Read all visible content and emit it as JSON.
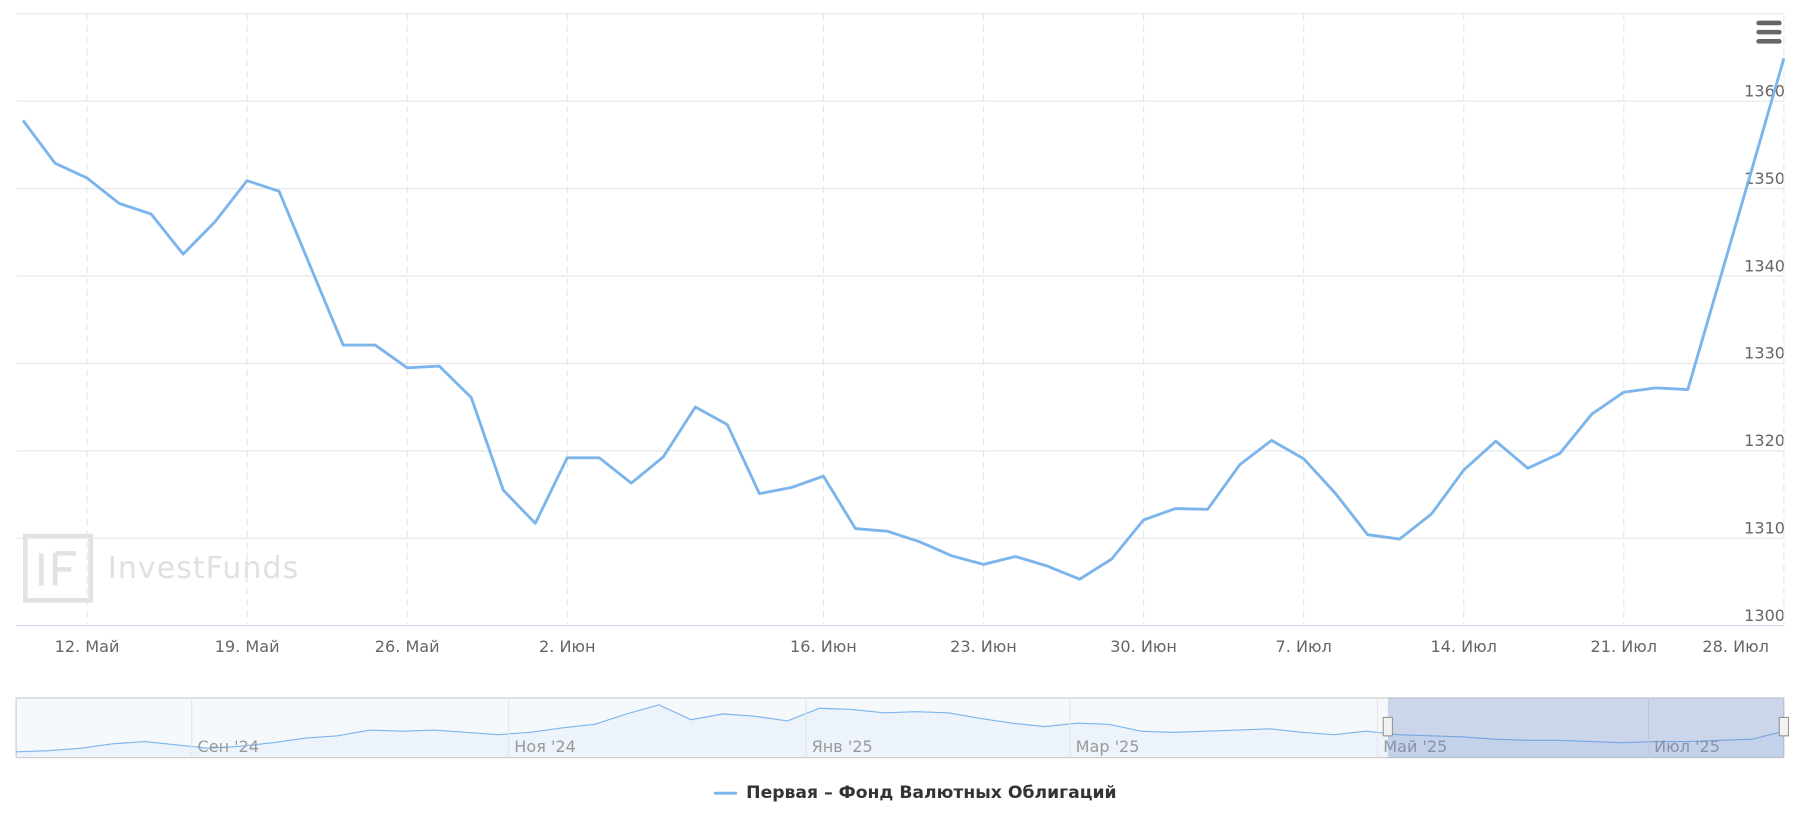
{
  "chart_data": {
    "type": "line",
    "categories": [
      null,
      null,
      "12. Май",
      null,
      null,
      null,
      null,
      "19. Май",
      null,
      null,
      null,
      null,
      "26. Май",
      null,
      null,
      null,
      null,
      "2. Июн",
      null,
      null,
      null,
      null,
      null,
      null,
      null,
      "16. Июн",
      null,
      null,
      null,
      null,
      "23. Июн",
      null,
      null,
      null,
      null,
      "30. Июн",
      null,
      null,
      null,
      null,
      "7. Июл",
      null,
      null,
      null,
      null,
      "14. Июл",
      null,
      null,
      null,
      null,
      "21. Июл",
      null,
      null,
      null,
      null,
      "28. Июл"
    ],
    "series": [
      {
        "name": "Первая – Фонд Валютных Облигаций",
        "color": "#7cb5ec",
        "values": [
          1357.8,
          1352.9,
          1351.2,
          1348.3,
          1347.1,
          1342.5,
          1346.2,
          1350.9,
          1349.7,
          1340.9,
          1332.1,
          1332.1,
          1329.5,
          1329.7,
          1326.1,
          1315.5,
          1311.7,
          1319.2,
          1319.2,
          1316.3,
          1319.3,
          1325.0,
          1323.0,
          1315.1,
          1315.8,
          1317.1,
          1311.1,
          1310.8,
          1309.6,
          1308.0,
          1307.0,
          1307.9,
          1306.8,
          1305.3,
          1307.6,
          1312.1,
          1313.4,
          1313.3,
          1318.4,
          1321.2,
          1319.1,
          1315.1,
          1310.4,
          1309.9,
          1312.8,
          1317.8,
          1321.1,
          1318.0,
          1319.7,
          1324.2,
          1326.7,
          1327.2,
          1327.0,
          1339.6,
          1352.2,
          1364.9
        ]
      }
    ],
    "ylim": [
      1300,
      1370
    ],
    "yticks": [
      1300,
      1310,
      1320,
      1330,
      1340,
      1350,
      1360
    ],
    "grid": true,
    "watermark": "InvestFunds",
    "navigator": {
      "color": "#7cb5ec",
      "ylim": [
        1220,
        1620
      ],
      "values": [
        1259,
        1266,
        1282,
        1312,
        1328,
        1305,
        1282,
        1297,
        1320,
        1351,
        1366,
        1405,
        1397,
        1405,
        1389,
        1374,
        1389,
        1420,
        1443,
        1513,
        1574,
        1474,
        1513,
        1497,
        1466,
        1551,
        1543,
        1520,
        1528,
        1520,
        1482,
        1451,
        1428,
        1451,
        1443,
        1397,
        1389,
        1397,
        1405,
        1413,
        1389,
        1374,
        1397,
        1374,
        1366,
        1359,
        1343,
        1336,
        1336,
        1328,
        1320,
        1328,
        1328,
        1336,
        1343,
        1397
      ],
      "labels": [
        "Сен '24",
        "Ноя '24",
        "Янв '25",
        "Мар '25",
        "Май '25",
        "Июл '25"
      ]
    }
  }
}
